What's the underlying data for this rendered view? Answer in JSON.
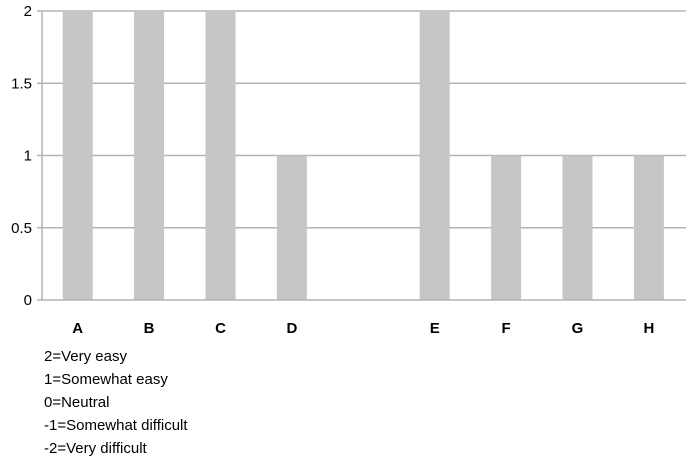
{
  "chart_data": {
    "type": "bar",
    "categories": [
      "A",
      "B",
      "C",
      "D",
      "",
      "E",
      "F",
      "G",
      "H"
    ],
    "values": [
      2,
      2,
      2,
      1,
      null,
      2,
      1,
      1,
      1
    ],
    "y_ticks": [
      "0",
      "0.5",
      "1",
      "1.5",
      "2"
    ],
    "ylim": [
      0,
      2
    ],
    "grid": true,
    "title": "",
    "xlabel": "",
    "ylabel": "",
    "bar_color": "#c6c6c6",
    "grid_color": "#b3b3b3"
  },
  "legend_notes": [
    "2=Very easy",
    "1=Somewhat easy",
    "0=Neutral",
    "-1=Somewhat difficult",
    "-2=Very difficult"
  ]
}
